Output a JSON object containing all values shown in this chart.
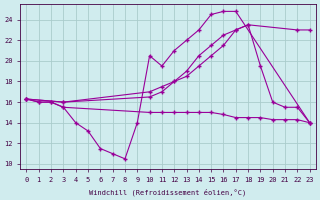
{
  "xlabel": "Windchill (Refroidissement éolien,°C)",
  "background_color": "#d0ecee",
  "grid_color": "#aacccc",
  "line_color": "#990099",
  "xlim": [
    -0.5,
    23.5
  ],
  "ylim": [
    9.5,
    25.5
  ],
  "yticks": [
    10,
    12,
    14,
    16,
    18,
    20,
    22,
    24
  ],
  "xticks": [
    0,
    1,
    2,
    3,
    4,
    5,
    6,
    7,
    8,
    9,
    10,
    11,
    12,
    13,
    14,
    15,
    16,
    17,
    18,
    19,
    20,
    21,
    22,
    23
  ],
  "line1_x": [
    0,
    1,
    2,
    3,
    4,
    5,
    6,
    7,
    8,
    9,
    10,
    11,
    12,
    13,
    14,
    15,
    16,
    17,
    23
  ],
  "line1_y": [
    16.3,
    16.0,
    16.0,
    15.5,
    14.0,
    13.2,
    11.5,
    11.0,
    10.5,
    14.0,
    20.5,
    19.5,
    21.0,
    22.0,
    23.0,
    24.5,
    24.8,
    24.8,
    14.0
  ],
  "line2_x": [
    0,
    1,
    2,
    3,
    10,
    11,
    12,
    13,
    14,
    15,
    16,
    17,
    18,
    19,
    20,
    21,
    22,
    23
  ],
  "line2_y": [
    16.3,
    16.0,
    16.0,
    15.5,
    15.0,
    15.0,
    15.0,
    15.0,
    15.0,
    15.0,
    14.8,
    14.5,
    14.5,
    14.5,
    14.3,
    14.3,
    14.3,
    14.0
  ],
  "line3_x": [
    0,
    3,
    10,
    11,
    12,
    13,
    14,
    15,
    16,
    17,
    18,
    19,
    20,
    21,
    22,
    23
  ],
  "line3_y": [
    16.3,
    16.0,
    17.0,
    17.5,
    18.0,
    18.5,
    19.5,
    20.5,
    21.5,
    23.0,
    23.5,
    19.5,
    16.0,
    15.5,
    15.5,
    14.0
  ],
  "line4_x": [
    0,
    3,
    10,
    11,
    12,
    13,
    14,
    15,
    16,
    17,
    18,
    22,
    23
  ],
  "line4_y": [
    16.3,
    16.0,
    16.5,
    17.0,
    18.0,
    19.0,
    20.5,
    21.5,
    22.5,
    23.0,
    23.5,
    23.0,
    23.0
  ]
}
